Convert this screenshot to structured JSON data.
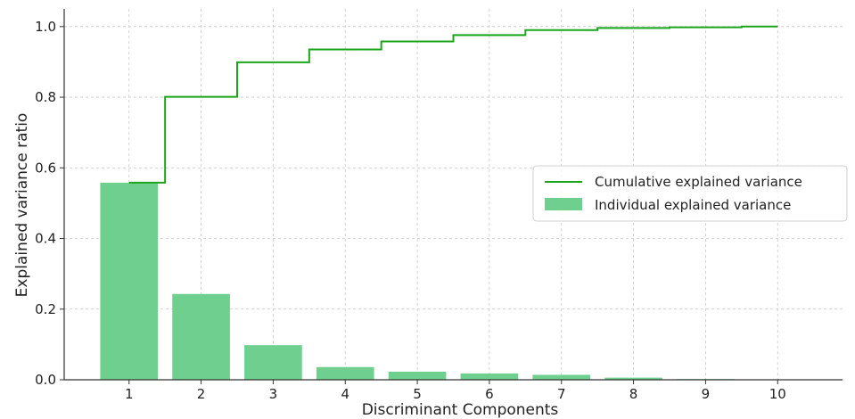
{
  "chart_data": {
    "type": "bar",
    "xlabel": "Discriminant Components",
    "ylabel": "Explained variance ratio",
    "categories": [
      "1",
      "2",
      "3",
      "4",
      "5",
      "6",
      "7",
      "8",
      "9",
      "10"
    ],
    "xticks": [
      1,
      2,
      3,
      4,
      5,
      6,
      7,
      8,
      9,
      10
    ],
    "ylim": [
      0,
      1.05
    ],
    "yticks": [
      0.0,
      0.2,
      0.4,
      0.6,
      0.8,
      1.0
    ],
    "ytick_labels": [
      "0.0",
      "0.2",
      "0.4",
      "0.6",
      "0.8",
      "1.0"
    ],
    "grid": true,
    "legend_position": "center-right",
    "series": [
      {
        "name": "Individual explained variance",
        "type": "bar",
        "color": "#6fcf8f",
        "values": [
          0.558,
          0.243,
          0.098,
          0.036,
          0.023,
          0.018,
          0.014,
          0.006,
          0.002,
          0.001
        ]
      },
      {
        "name": "Cumulative explained variance",
        "type": "step",
        "color": "#1aa51a",
        "values": [
          0.558,
          0.801,
          0.899,
          0.935,
          0.958,
          0.976,
          0.99,
          0.996,
          0.998,
          1.0
        ]
      }
    ]
  }
}
